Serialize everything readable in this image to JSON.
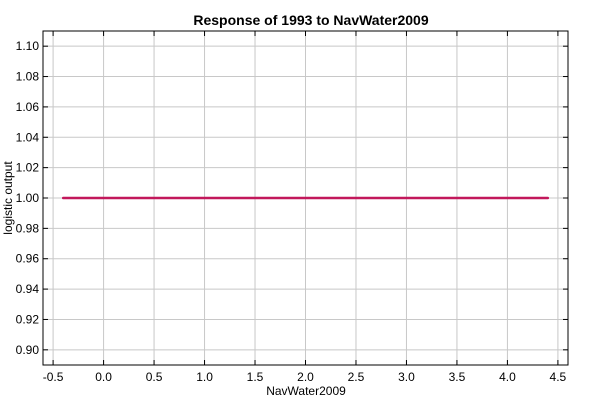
{
  "chart_data": {
    "type": "line",
    "title": "Response of 1993 to NavWater2009",
    "xlabel": "NavWater2009",
    "ylabel": "logistic output",
    "xlim": [
      -0.6,
      4.6
    ],
    "ylim": [
      0.89,
      1.11
    ],
    "xticks": [
      -0.5,
      0.0,
      0.5,
      1.0,
      1.5,
      2.0,
      2.5,
      3.0,
      3.5,
      4.0,
      4.5
    ],
    "xtick_labels": [
      "-0.5",
      "0.0",
      "0.5",
      "1.0",
      "1.5",
      "2.0",
      "2.5",
      "3.0",
      "3.5",
      "4.0",
      "4.5"
    ],
    "yticks": [
      0.9,
      0.92,
      0.94,
      0.96,
      0.98,
      1.0,
      1.02,
      1.04,
      1.06,
      1.08,
      1.1
    ],
    "ytick_labels": [
      "0.90",
      "0.92",
      "0.94",
      "0.96",
      "0.98",
      "1.00",
      "1.02",
      "1.04",
      "1.06",
      "1.08",
      "1.10"
    ],
    "grid": true,
    "series": [
      {
        "x": [
          -0.4,
          4.4
        ],
        "y": [
          1.0,
          1.0
        ],
        "color": "#c2185b"
      }
    ]
  }
}
